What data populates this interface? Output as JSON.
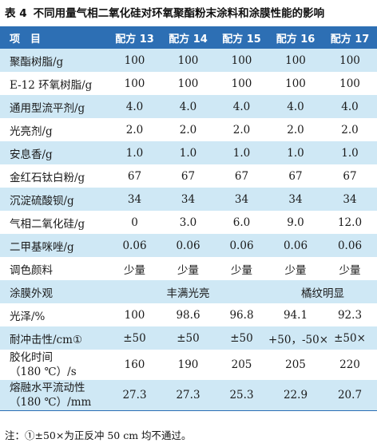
{
  "caption": {
    "number": "表 4",
    "title": "不同用量气相二氧化硅对环氧聚酯粉末涂料和涂膜性能的影响"
  },
  "header": [
    "项　目",
    "配方 13",
    "配方 14",
    "配方 15",
    "配方 16",
    "配方 17"
  ],
  "rows": [
    {
      "label": "聚酯树脂/g",
      "values": [
        "100",
        "100",
        "100",
        "100",
        "100"
      ]
    },
    {
      "label": "E-12 环氧树脂/g",
      "values": [
        "100",
        "100",
        "100",
        "100",
        "100"
      ]
    },
    {
      "label": "通用型流平剂/g",
      "values": [
        "4.0",
        "4.0",
        "4.0",
        "4.0",
        "4.0"
      ]
    },
    {
      "label": "光亮剂/g",
      "values": [
        "2.0",
        "2.0",
        "2.0",
        "2.0",
        "2.0"
      ]
    },
    {
      "label": "安息香/g",
      "values": [
        "1.0",
        "1.0",
        "1.0",
        "1.0",
        "1.0"
      ]
    },
    {
      "label": "金红石钛白粉/g",
      "values": [
        "67",
        "67",
        "67",
        "67",
        "67"
      ]
    },
    {
      "label": "沉淀硫酸钡/g",
      "values": [
        "34",
        "34",
        "34",
        "34",
        "34"
      ]
    },
    {
      "label": "气相二氧化硅/g",
      "values": [
        "0",
        "3.0",
        "6.0",
        "9.0",
        "12.0"
      ]
    },
    {
      "label": "二甲基咪唑/g",
      "values": [
        "0.06",
        "0.06",
        "0.06",
        "0.06",
        "0.06"
      ]
    },
    {
      "label": "调色颜料",
      "values": [
        "少量",
        "少量",
        "少量",
        "少量",
        "少量"
      ]
    }
  ],
  "appearance": {
    "label": "涂膜外观",
    "group1": "丰满光亮",
    "group2": "橘纹明显"
  },
  "rows2": [
    {
      "label": "光泽/%",
      "values": [
        "100",
        "98.6",
        "96.8",
        "94.1",
        "92.3"
      ]
    },
    {
      "label": "耐冲击性/cm①",
      "values": [
        "±50",
        "±50",
        "±50",
        "+50，-50×",
        "±50×"
      ]
    }
  ],
  "gel": {
    "label_line1": "胶化时间",
    "label_line2": "（180 ℃）/s",
    "values": [
      "160",
      "190",
      "205",
      "205",
      "220"
    ]
  },
  "flow": {
    "label_line1": "熔融水平流动性",
    "label_line2": "（180 ℃）/mm",
    "values": [
      "27.3",
      "27.3",
      "25.3",
      "22.9",
      "20.7"
    ]
  },
  "note": "注：①±50×为正反冲 50 cm 均不通过。"
}
